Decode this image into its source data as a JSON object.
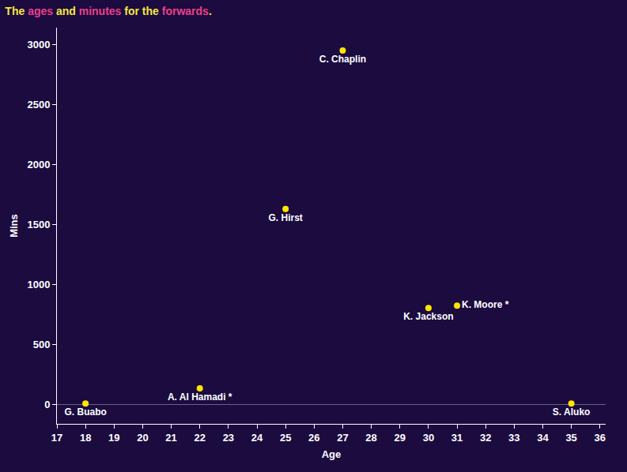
{
  "chart_data": {
    "type": "scatter",
    "title": "The ages and minutes for the forwards.",
    "title_highlight": [
      "ages",
      "minutes",
      "forwards"
    ],
    "x_label": "Age",
    "y_label": "Mins",
    "x": [
      18,
      22,
      25,
      27,
      30,
      31,
      35
    ],
    "values": [
      10,
      135,
      1630,
      2950,
      805,
      825,
      10
    ],
    "labels": [
      "G. Buabo",
      "A. Al Hamadi *",
      "G. Hirst",
      "C. Chaplin",
      "K. Jackson",
      "K. Moore *",
      "S. Aluko"
    ],
    "color": "#ffe600",
    "xlim": [
      17,
      36.2
    ],
    "xticks": [
      17,
      18,
      19,
      20,
      21,
      22,
      23,
      24,
      25,
      26,
      27,
      28,
      29,
      30,
      31,
      32,
      33,
      34,
      35,
      36
    ],
    "ylim": [
      -160,
      3140
    ],
    "yticks": [
      0,
      500,
      1000,
      1500,
      2000,
      2500,
      3000
    ],
    "grid": false
  }
}
